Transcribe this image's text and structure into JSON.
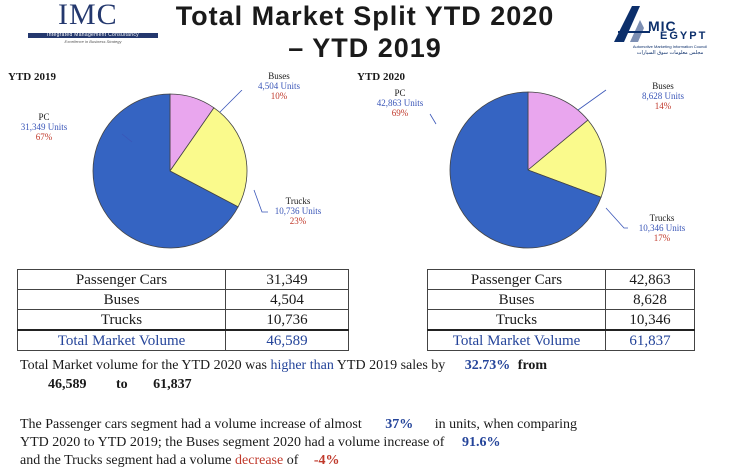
{
  "header": {
    "imc_logo_name": "IMC",
    "imc_logo_subtitle": "Integrated Management Consultancy",
    "imc_logo_tagline": "Excellence in Business Strategy",
    "title_line1": "Total Market Split YTD 2020",
    "title_line2": "– YTD 2019",
    "amic_text1": "MIC",
    "amic_text2": "EGYPT",
    "amic_subtitle": "Automotive Marketing Information Council",
    "amic_arabic": "مجلس معلومات سوق السيارات"
  },
  "chart_data": [
    {
      "type": "pie",
      "title": "YTD 2019",
      "start_angle_deg": 90,
      "slices": [
        {
          "label": "PC",
          "units": "31,349 Units",
          "value": 31349,
          "percent": "67%",
          "color": "#3564c2"
        },
        {
          "label": "Buses",
          "units": "4,504 Units",
          "value": 4504,
          "percent": "10%",
          "color": "#e9a6ee"
        },
        {
          "label": "Trucks",
          "units": "10,736 Units",
          "value": 10736,
          "percent": "23%",
          "color": "#fafa8c"
        }
      ]
    },
    {
      "type": "pie",
      "title": "YTD 2020",
      "start_angle_deg": 90,
      "slices": [
        {
          "label": "PC",
          "units": "42,863 Units",
          "value": 42863,
          "percent": "69%",
          "color": "#3564c2"
        },
        {
          "label": "Buses",
          "units": "8,628 Units",
          "value": 8628,
          "percent": "14%",
          "color": "#e9a6ee"
        },
        {
          "label": "Trucks",
          "units": "10,346 Units",
          "value": 10346,
          "percent": "17%",
          "color": "#fafa8c"
        }
      ]
    }
  ],
  "tables": {
    "ytd2019": {
      "rows": [
        {
          "label": "Passenger Cars",
          "value": "31,349"
        },
        {
          "label": "Buses",
          "value": "4,504"
        },
        {
          "label": "Trucks",
          "value": "10,736"
        }
      ],
      "total_label": "Total Market Volume",
      "total_value": "46,589"
    },
    "ytd2020": {
      "rows": [
        {
          "label": "Passenger Cars",
          "value": "42,863"
        },
        {
          "label": "Buses",
          "value": "8,628"
        },
        {
          "label": "Trucks",
          "value": "10,346"
        }
      ],
      "total_label": "Total Market Volume",
      "total_value": "61,837"
    }
  },
  "summary": {
    "line1_a": "Total Market volume for the YTD 2020 was ",
    "line1_b": "higher than",
    "line1_c": " YTD 2019 sales by",
    "line1_pct": "32.73%",
    "line1_from": "from",
    "line2_a": "46,589",
    "line2_to": "to",
    "line2_b": "61,837",
    "p2_line1_a": "The Passenger cars segment had a volume increase of almost",
    "p2_line1_pct": "37%",
    "p2_line1_b": "in units, when comparing",
    "p2_line2_a": "YTD 2020 to YTD 2019; the Buses segment 2020  had a volume increase of",
    "p2_line2_pct": "91.6%",
    "p2_line3_a": " and the Trucks segment had a volume ",
    "p2_line3_dec": "decrease",
    "p2_line3_of": " of",
    "p2_line3_pct": "-4%"
  }
}
